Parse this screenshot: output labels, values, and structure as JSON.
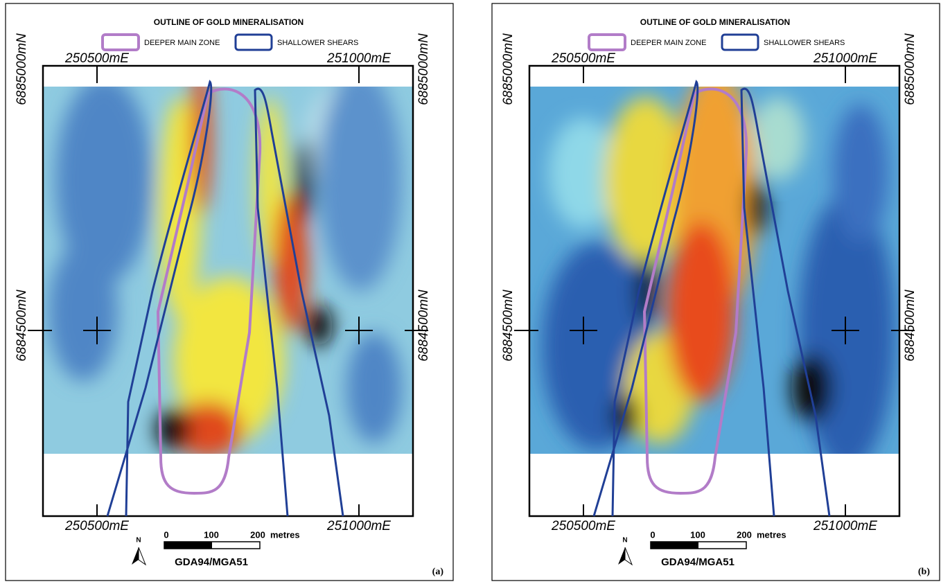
{
  "panels": [
    {
      "title": "OUTLINE OF GOLD MINERALISATION",
      "legend": [
        "DEEPER MAIN ZONE",
        "SHALLOWER SHEARS"
      ],
      "easting": [
        "250500mE",
        "251000mE"
      ],
      "northing": [
        "6885000mN",
        "6884500mN"
      ],
      "scale_labels": [
        "0",
        "100",
        "200"
      ],
      "scale_unit": "metres",
      "north": "N",
      "projection": "GDA94/MGA51",
      "label": "(a)"
    },
    {
      "title": "OUTLINE OF GOLD MINERALISATION",
      "legend": [
        "DEEPER MAIN ZONE",
        "SHALLOWER SHEARS"
      ],
      "easting": [
        "250500mE",
        "251000mE"
      ],
      "northing": [
        "6885000mN",
        "6884500mN"
      ],
      "scale_labels": [
        "0",
        "100",
        "200"
      ],
      "scale_unit": "metres",
      "north": "N",
      "projection": "GDA94/MGA51",
      "label": "(b)"
    }
  ]
}
